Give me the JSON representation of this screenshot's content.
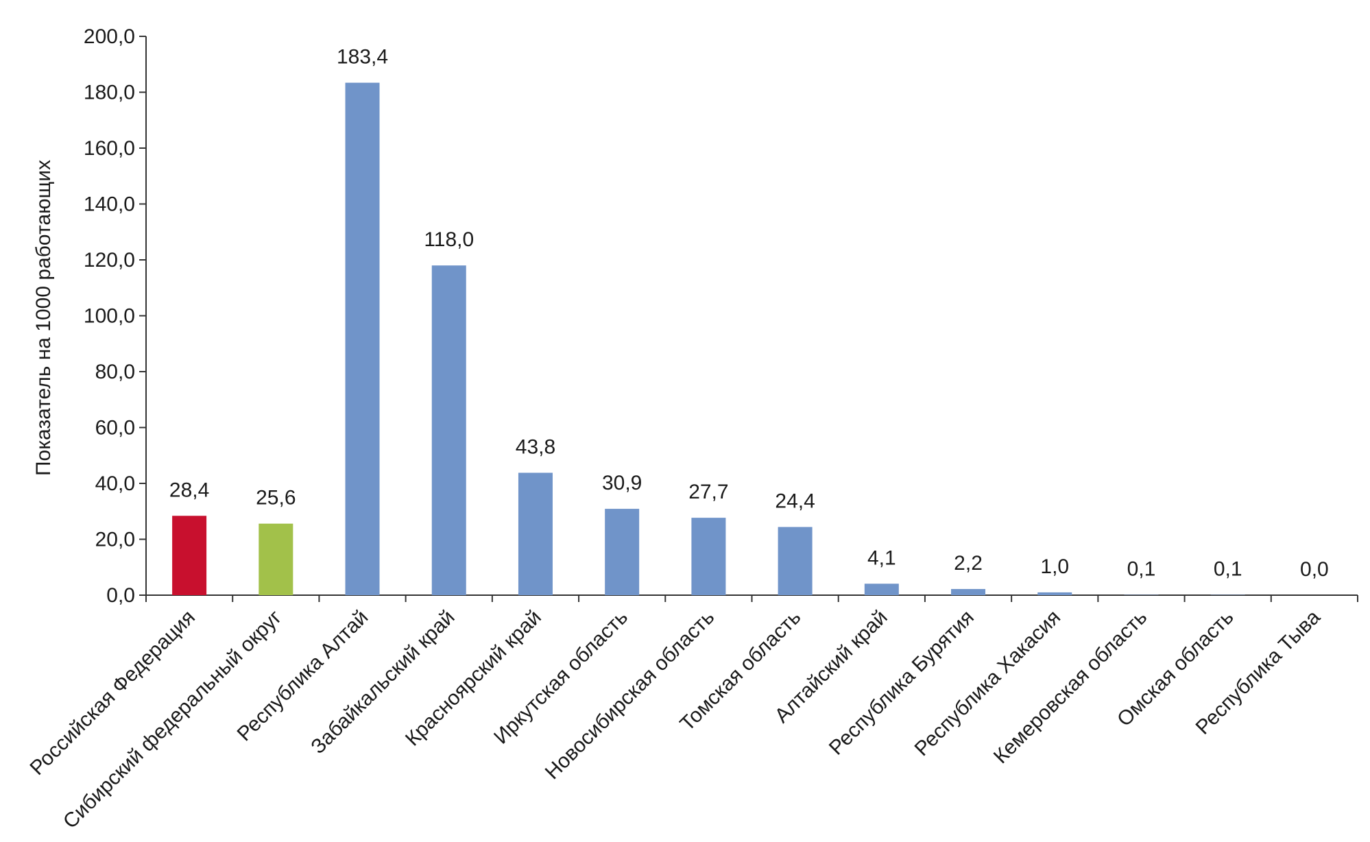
{
  "chart_data": {
    "type": "bar",
    "ylabel": "Показатель на 1000 работающих",
    "ylim": [
      0,
      200
    ],
    "ytick_step": 20,
    "ytick_labels": [
      "0,0",
      "20,0",
      "40,0",
      "60,0",
      "80,0",
      "100,0",
      "120,0",
      "140,0",
      "160,0",
      "180,0",
      "200,0"
    ],
    "grid": false,
    "categories": [
      "Российская Федерация",
      "Сибирский федеральный округ",
      "Республика Алтай",
      "Забайкальский край",
      "Красноярский край",
      "Иркутская область",
      "Новосибирская область",
      "Томская область",
      "Алтайский край",
      "Республика Бурятия",
      "Республика Хакасия",
      "Кемеровская область",
      "Омская область",
      "Республика Тыва"
    ],
    "values": [
      28.4,
      25.6,
      183.4,
      118.0,
      43.8,
      30.9,
      27.7,
      24.4,
      4.1,
      2.2,
      1.0,
      0.1,
      0.1,
      0.0
    ],
    "value_labels": [
      "28,4",
      "25,6",
      "183,4",
      "118,0",
      "43,8",
      "30,9",
      "27,7",
      "24,4",
      "4,1",
      "2,2",
      "1,0",
      "0,1",
      "0,1",
      "0,0"
    ],
    "colors": [
      "#c8102e",
      "#a2c14a",
      "#7094c9",
      "#7094c9",
      "#7094c9",
      "#7094c9",
      "#7094c9",
      "#7094c9",
      "#7094c9",
      "#7094c9",
      "#7094c9",
      "#7094c9",
      "#7094c9",
      "#7094c9"
    ],
    "axis_color": "#333333"
  }
}
